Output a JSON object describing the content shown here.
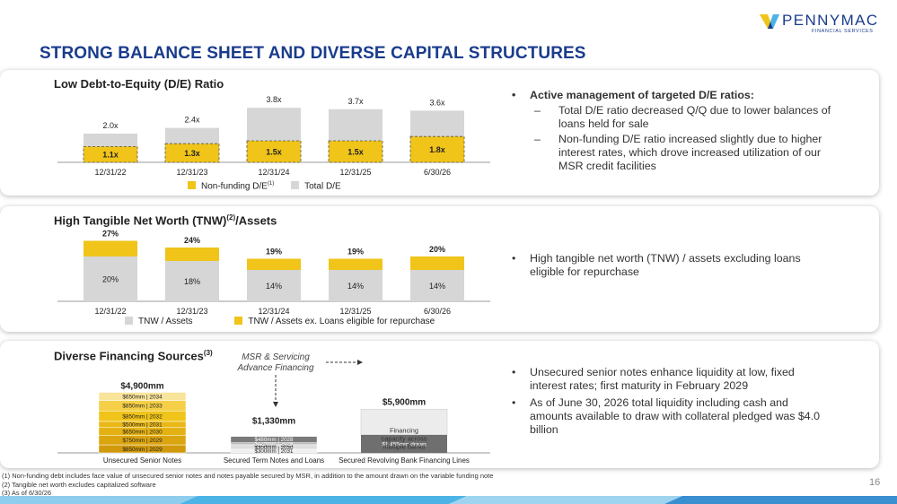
{
  "header": {
    "title": "STRONG BALANCE SHEET AND DIVERSE CAPITAL STRUCTURES",
    "logo_name": "PENNYMAC",
    "logo_sub": "FINANCIAL SERVICES"
  },
  "colors": {
    "gold": "#f0c419",
    "gray": "#d6d6d6",
    "navy": "#1a3c8c"
  },
  "de_panel": {
    "title": "Low Debt-to-Equity (D/E) Ratio",
    "legend_nonfunding": "Non-funding D/E",
    "legend_nonfunding_sup": "(1)",
    "legend_total": "Total D/E",
    "bullets": [
      {
        "level": 1,
        "bold": true,
        "text": "Active management of targeted D/E ratios:"
      },
      {
        "level": 2,
        "bold": false,
        "text": "Total D/E ratio decreased Q/Q due to lower balances of loans held for sale"
      },
      {
        "level": 2,
        "bold": false,
        "text": "Non-funding D/E ratio increased slightly due to higher interest rates, which drove increased utilization of our MSR credit facilities"
      }
    ]
  },
  "tnw_panel": {
    "title": "High Tangible Net Worth (TNW)",
    "title_sup": "(2)",
    "title_suffix": "/Assets",
    "legend_tnw": "TNW / Assets",
    "legend_tnw_ex": "TNW / Assets ex. Loans eligible for repurchase",
    "bullets": [
      {
        "level": 1,
        "bold": false,
        "text": "High tangible net worth (TNW) / assets excluding loans eligible for repurchase"
      }
    ]
  },
  "fin_panel": {
    "title": "Diverse Financing Sources",
    "title_sup": "(3)",
    "msr_label_1": "MSR & Servicing",
    "msr_label_2": "Advance Financing",
    "bullets": [
      {
        "level": 1,
        "bold": false,
        "text": "Unsecured senior notes enhance liquidity at low, fixed interest rates; first maturity in February 2029"
      },
      {
        "level": 1,
        "bold": false,
        "text": "As of June 30, 2026 total liquidity including cash and amounts available to draw with collateral pledged was $4.0 billion"
      }
    ]
  },
  "chart_data": [
    {
      "type": "bar",
      "title": "Low Debt-to-Equity (D/E) Ratio",
      "categories": [
        "12/31/22",
        "12/31/23",
        "12/31/24",
        "12/31/25",
        "6/30/26"
      ],
      "series": [
        {
          "name": "Non-funding D/E",
          "values": [
            1.1,
            1.3,
            1.5,
            1.5,
            1.8
          ],
          "labels": [
            "1.1x",
            "1.3x",
            "1.5x",
            "1.5x",
            "1.8x"
          ]
        },
        {
          "name": "Total D/E",
          "values": [
            2.0,
            2.4,
            3.8,
            3.7,
            3.6
          ],
          "labels": [
            "2.0x",
            "2.4x",
            "3.8x",
            "3.7x",
            "3.6x"
          ]
        }
      ],
      "ylim": [
        0,
        4
      ]
    },
    {
      "type": "bar",
      "title": "High Tangible Net Worth (TNW)/Assets",
      "categories": [
        "12/31/22",
        "12/31/23",
        "12/31/24",
        "12/31/25",
        "6/30/26"
      ],
      "series": [
        {
          "name": "TNW / Assets",
          "values": [
            20,
            18,
            14,
            14,
            14
          ],
          "labels": [
            "20%",
            "18%",
            "14%",
            "14%",
            "14%"
          ]
        },
        {
          "name": "TNW / Assets ex. Loans eligible for repurchase",
          "values": [
            27,
            24,
            19,
            19,
            20
          ],
          "labels": [
            "27%",
            "24%",
            "19%",
            "19%",
            "20%"
          ]
        }
      ],
      "ylim": [
        0,
        28
      ]
    },
    {
      "type": "bar",
      "title": "Diverse Financing Sources",
      "categories": [
        "Unsecured Senior Notes",
        "Secured Term Notes and Loans",
        "Secured Revolving Bank Financing Lines"
      ],
      "totals": [
        4900,
        1330,
        5900
      ],
      "total_labels": [
        "$4,900mm",
        "$1,330mm",
        "$5,900mm"
      ],
      "unsecured_segments": [
        {
          "label": "$650mm | 2029",
          "value": 650
        },
        {
          "label": "$750mm | 2029",
          "value": 750
        },
        {
          "label": "$650mm | 2030",
          "value": 650
        },
        {
          "label": "$500mm | 2031",
          "value": 500
        },
        {
          "label": "$850mm | 2032",
          "value": 850
        },
        {
          "label": "$850mm | 2033",
          "value": 850
        },
        {
          "label": "$650mm | 2034",
          "value": 650
        }
      ],
      "term_segments": [
        {
          "label": "$300mm | 2031",
          "value": 300
        },
        {
          "label": "$300mm | 2030",
          "value": 300
        },
        {
          "label": "$125mm | 2029",
          "value": 125
        },
        {
          "label": "$125mm | 2028",
          "value": 125
        },
        {
          "label": "$480mm | 2028",
          "value": 480
        }
      ],
      "revolving_drawn": {
        "label": "$1,455mm drawn",
        "value": 1455
      },
      "revolving_capacity_label": [
        "Financing",
        "capacity across",
        "multiple banks"
      ]
    }
  ],
  "footnotes": [
    "(1) Non-funding debt includes face value of unsecured senior notes and notes payable secured by MSR, in addition to the amount drawn on the variable funding note",
    "(2) Tangible net worth excludes capitalized software",
    "(3) As of 6/30/26"
  ],
  "page_number": "16"
}
